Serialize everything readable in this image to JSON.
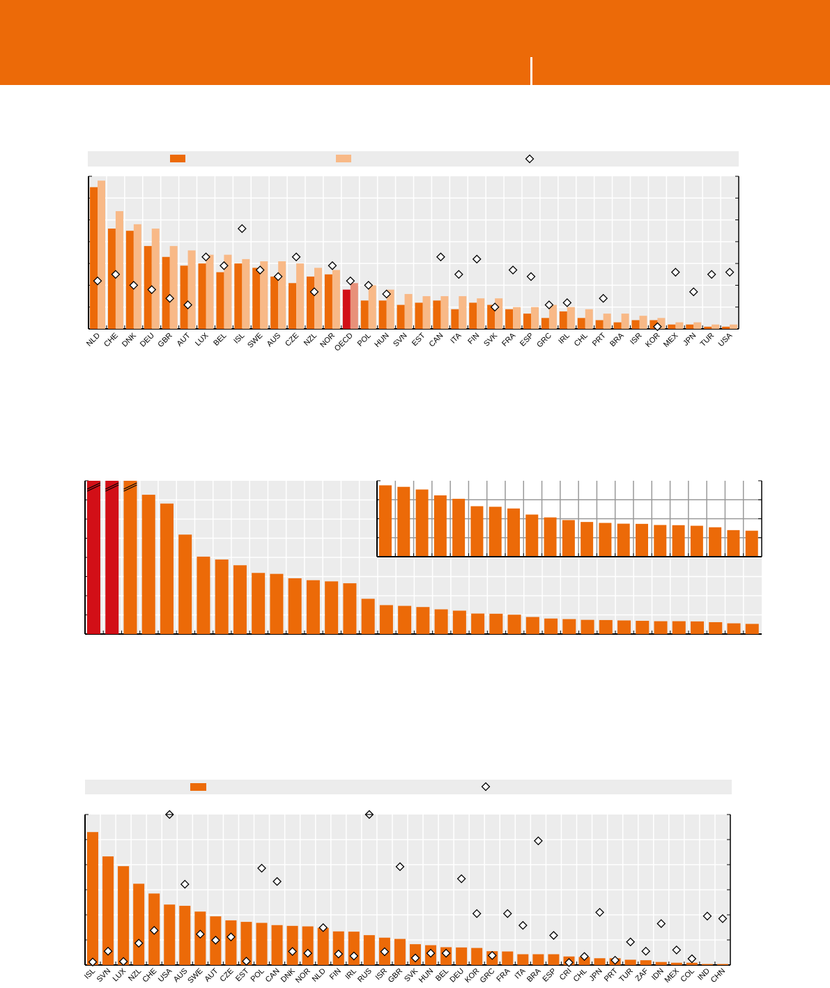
{
  "colors": {
    "header": "#EC6A08",
    "bar_dark": "#EC6A08",
    "bar_light": "#F8B987",
    "highlight_dark": "#D20F17",
    "highlight_light": "#E8917A",
    "plot_bg": "#ECECEC",
    "grid": "#FFFFFF",
    "inset_grid": "#999999"
  },
  "chart_data": [
    {
      "type": "bar",
      "legend": {
        "entries": [
          "bar_dark",
          "bar_light",
          "diamond"
        ],
        "placement": "top"
      },
      "ylim": [
        0,
        7
      ],
      "highlight": "OECD",
      "categories": [
        "NLD",
        "CHE",
        "DNK",
        "DEU",
        "GBR",
        "AUT",
        "LUX",
        "BEL",
        "ISL",
        "SWE",
        "AUS",
        "CZE",
        "NZL",
        "NOR",
        "OECD",
        "POL",
        "HUN",
        "SVN",
        "EST",
        "CAN",
        "ITA",
        "FIN",
        "SVK",
        "FRA",
        "ESP",
        "GRC",
        "IRL",
        "CHL",
        "PRT",
        "BRA",
        "ISR",
        "KOR",
        "MEX",
        "JPN",
        "TUR",
        "USA"
      ],
      "series": [
        {
          "name": "series-dark",
          "kind": "bar",
          "values": [
            6.5,
            4.6,
            4.5,
            3.8,
            3.3,
            2.9,
            3.0,
            2.6,
            3.0,
            2.8,
            2.4,
            2.1,
            2.4,
            2.5,
            1.8,
            1.3,
            1.3,
            1.1,
            1.2,
            1.3,
            0.9,
            1.2,
            1.1,
            0.9,
            0.7,
            0.5,
            0.8,
            0.5,
            0.4,
            0.3,
            0.4,
            0.4,
            0.2,
            0.2,
            0.1,
            0.1
          ]
        },
        {
          "name": "series-light",
          "kind": "bar",
          "values": [
            6.8,
            5.4,
            4.8,
            4.6,
            3.8,
            3.6,
            3.4,
            3.4,
            3.2,
            3.1,
            3.1,
            3.0,
            2.8,
            2.7,
            2.1,
            2.0,
            1.8,
            1.6,
            1.5,
            1.5,
            1.5,
            1.4,
            1.4,
            1.0,
            1.0,
            1.1,
            1.0,
            0.9,
            0.7,
            0.7,
            0.6,
            0.5,
            0.3,
            0.3,
            0.2,
            0.2
          ]
        },
        {
          "name": "series-diamond",
          "kind": "marker",
          "values": [
            2.2,
            2.5,
            2.0,
            1.8,
            1.4,
            1.1,
            3.3,
            2.9,
            4.6,
            2.7,
            2.4,
            3.3,
            1.7,
            2.9,
            2.2,
            2.0,
            1.6,
            null,
            null,
            3.3,
            2.5,
            3.2,
            1.0,
            2.7,
            2.4,
            1.1,
            1.2,
            null,
            1.4,
            null,
            null,
            0.1,
            2.6,
            1.7,
            2.5,
            2.6
          ]
        }
      ]
    },
    {
      "type": "bar",
      "ylim": [
        0,
        8
      ],
      "values": [
        8,
        8,
        8,
        7.27,
        6.81,
        5.19,
        4.04,
        3.89,
        3.59,
        3.19,
        3.14,
        2.91,
        2.81,
        2.75,
        2.65,
        1.84,
        1.51,
        1.47,
        1.41,
        1.29,
        1.22,
        1.07,
        1.06,
        1.01,
        0.89,
        0.81,
        0.78,
        0.74,
        0.73,
        0.71,
        0.69,
        0.67,
        0.67,
        0.66,
        0.62,
        0.56,
        0.53
      ],
      "truncated": [
        true,
        true,
        true
      ],
      "highlight_indices": [
        0,
        1
      ],
      "inset": {
        "ylim": [
          0,
          4
        ],
        "values": [
          3.76,
          3.68,
          3.54,
          3.23,
          3.05,
          2.66,
          2.63,
          2.54,
          2.22,
          2.07,
          1.93,
          1.83,
          1.78,
          1.74,
          1.73,
          1.67,
          1.66,
          1.63,
          1.55,
          1.4,
          1.37
        ]
      }
    },
    {
      "type": "bar",
      "legend": {
        "entries": [
          "bar_dark",
          "diamond"
        ],
        "placement": "top"
      },
      "ylim": [
        0,
        6
      ],
      "categories": [
        "ISL",
        "SVN",
        "LUX",
        "NZL",
        "CHE",
        "USA",
        "AUS",
        "SWE",
        "AUT",
        "CZE",
        "EST",
        "POL",
        "CAN",
        "DNK",
        "NOR",
        "NLD",
        "FIN",
        "IRL",
        "RUS",
        "ISR",
        "GBR",
        "SVK",
        "HUN",
        "BEL",
        "DEU",
        "KOR",
        "GRC",
        "FRA",
        "ITA",
        "BRA",
        "ESP",
        "CRI",
        "CHL",
        "JPN",
        "PRT",
        "TUR",
        "ZAF",
        "IDN",
        "MEX",
        "COL",
        "IND",
        "CHN"
      ],
      "series": [
        {
          "name": "series-bar",
          "kind": "bar",
          "values": [
            5.3,
            4.33,
            3.94,
            3.24,
            2.85,
            2.41,
            2.36,
            2.13,
            1.94,
            1.78,
            1.72,
            1.68,
            1.59,
            1.56,
            1.54,
            1.48,
            1.34,
            1.33,
            1.19,
            1.09,
            1.04,
            0.83,
            0.79,
            0.71,
            0.7,
            0.68,
            0.55,
            0.54,
            0.43,
            0.43,
            0.43,
            0.34,
            0.32,
            0.27,
            0.27,
            0.21,
            0.19,
            0.12,
            0.09,
            0.09,
            0.04,
            0.04
          ]
        },
        {
          "name": "series-diamond",
          "kind": "marker",
          "values": [
            0.12,
            0.55,
            0.14,
            0.87,
            1.38,
            6.0,
            3.22,
            1.23,
            0.99,
            1.12,
            0.15,
            3.86,
            3.33,
            0.54,
            0.47,
            1.49,
            0.44,
            0.36,
            6.0,
            0.53,
            3.92,
            0.28,
            0.47,
            0.47,
            3.44,
            2.05,
            0.38,
            2.05,
            1.58,
            4.95,
            1.18,
            0.1,
            0.34,
            2.1,
            0.19,
            0.92,
            0.55,
            1.65,
            0.6,
            0.25,
            1.95,
            1.85
          ]
        }
      ],
      "marker_truncated": [
        "USA",
        "RUS"
      ]
    }
  ]
}
